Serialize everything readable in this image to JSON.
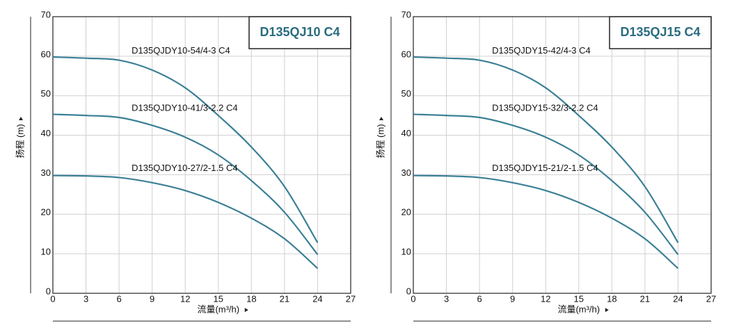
{
  "chart_data": [
    {
      "type": "line",
      "title": "D135QJ10 C4",
      "x_label": "流量(m³/h)",
      "y_label": "扬程 (m)",
      "x": [
        0,
        3,
        6,
        9,
        12,
        15,
        18,
        21,
        24
      ],
      "series": [
        {
          "name": "D135QJDY10-54/4-3 C4",
          "color": "#3b8096",
          "values": [
            59.8,
            59.5,
            59,
            56.5,
            52,
            45,
            37,
            27,
            12.8
          ]
        },
        {
          "name": "D135QJDY10-41/3-2.2 C4",
          "color": "#3b8096",
          "values": [
            45.3,
            45,
            44.5,
            42.5,
            39.5,
            35,
            28.5,
            20.5,
            9.8
          ]
        },
        {
          "name": "D135QJDY10-27/2-1.5 C4",
          "color": "#3b8096",
          "values": [
            29.8,
            29.7,
            29.3,
            28,
            26,
            23,
            19,
            13.8,
            6.3
          ]
        }
      ],
      "xlim": [
        0,
        27
      ],
      "xticks": [
        0,
        3,
        6,
        9,
        12,
        15,
        18,
        21,
        24,
        27
      ],
      "ylim": [
        0,
        70
      ],
      "yticks": [
        0,
        10,
        20,
        30,
        40,
        50,
        60,
        70
      ],
      "grid": true
    },
    {
      "type": "line",
      "title": "D135QJ15 C4",
      "x_label": "流量(m³/h)",
      "y_label": "扬程 (m)",
      "x": [
        0,
        3,
        6,
        9,
        12,
        15,
        18,
        21,
        24
      ],
      "series": [
        {
          "name": "D135QJDY15-42/4-3 C4",
          "color": "#3b8096",
          "values": [
            59.8,
            59.5,
            59,
            56.5,
            52,
            45,
            37,
            27,
            12.8
          ]
        },
        {
          "name": "D135QJDY15-32/3-2.2 C4",
          "color": "#3b8096",
          "values": [
            45.3,
            45,
            44.5,
            42.5,
            39.5,
            35,
            28.5,
            20.5,
            9.8
          ]
        },
        {
          "name": "D135QJDY15-21/2-1.5 C4",
          "color": "#3b8096",
          "values": [
            29.8,
            29.7,
            29.3,
            28,
            26,
            23,
            19,
            13.8,
            6.3
          ]
        }
      ],
      "xlim": [
        0,
        27
      ],
      "xticks": [
        0,
        3,
        6,
        9,
        12,
        15,
        18,
        21,
        24,
        27
      ],
      "ylim": [
        0,
        70
      ],
      "yticks": [
        0,
        10,
        20,
        30,
        40,
        50,
        60,
        70
      ],
      "grid": true
    }
  ]
}
